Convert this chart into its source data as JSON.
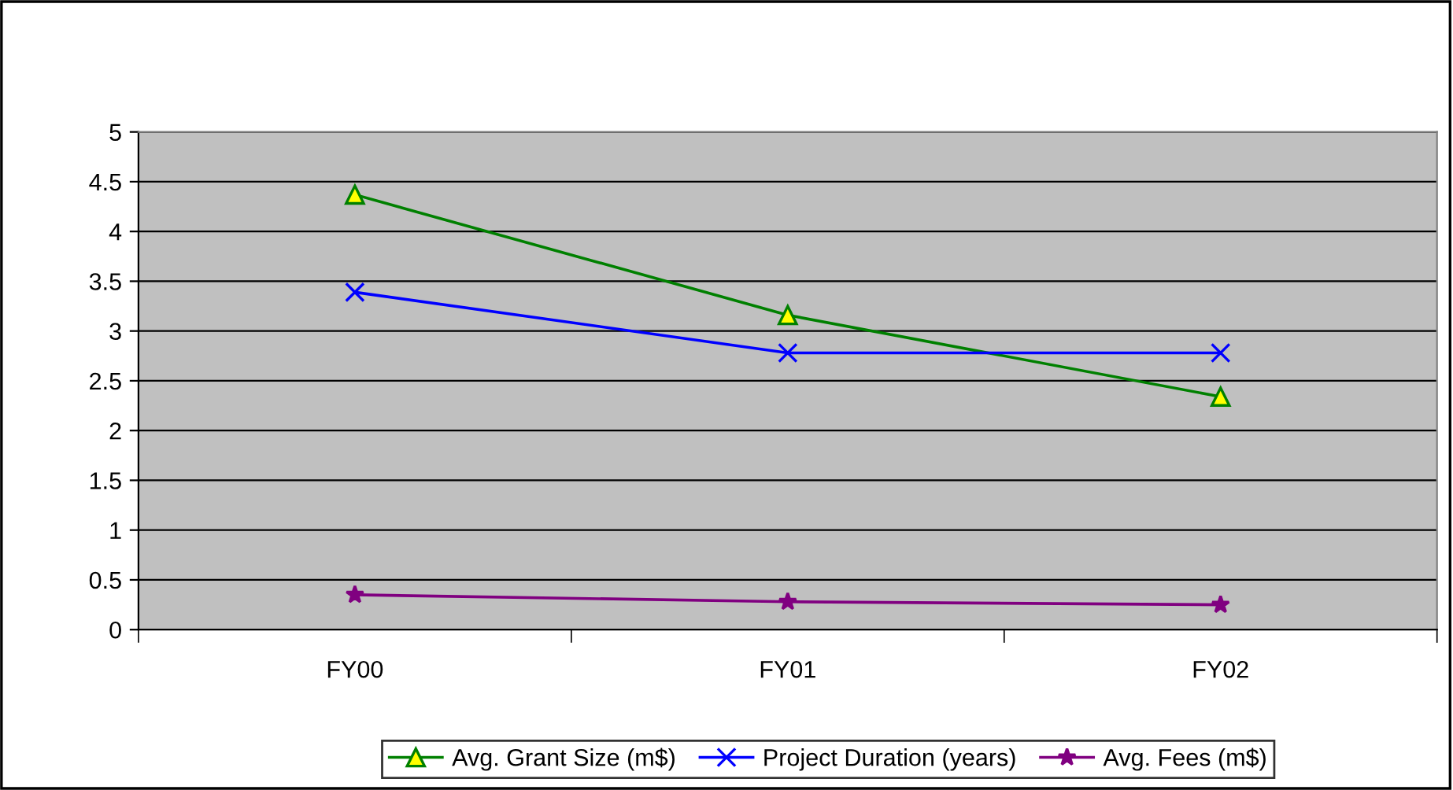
{
  "chart_data": {
    "type": "line",
    "categories": [
      "FY00",
      "FY01",
      "FY02"
    ],
    "series": [
      {
        "name": "Avg. Grant Size (m$)",
        "color": "#008000",
        "marker": "triangle",
        "values": [
          4.37,
          3.16,
          2.34
        ]
      },
      {
        "name": "Project Duration (years)",
        "color": "#0000ff",
        "marker": "cross",
        "values": [
          3.39,
          2.78,
          2.78
        ]
      },
      {
        "name": "Avg. Fees (m$)",
        "color": "#800080",
        "marker": "star",
        "values": [
          0.35,
          0.28,
          0.25
        ]
      }
    ],
    "ylim": [
      0,
      5
    ],
    "yticks": [
      0,
      0.5,
      1,
      1.5,
      2,
      2.5,
      3,
      3.5,
      4,
      4.5,
      5
    ],
    "grid": "y",
    "legend": "bottom"
  }
}
